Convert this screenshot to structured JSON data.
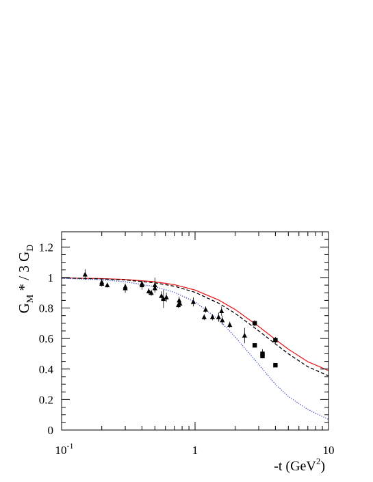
{
  "chart_data": {
    "type": "line",
    "title": "",
    "xscale": "log",
    "xlim": [
      0.1,
      10
    ],
    "ylim": [
      0,
      1.3
    ],
    "x_ticks": [
      {
        "value": 0.1,
        "base": "10",
        "exp": "-1"
      },
      {
        "value": 1,
        "base": "1",
        "exp": ""
      },
      {
        "value": 10,
        "base": "10",
        "exp": ""
      }
    ],
    "y_ticks": [
      {
        "value": 0,
        "label": "0"
      },
      {
        "value": 0.2,
        "label": "0.2"
      },
      {
        "value": 0.4,
        "label": "0.4"
      },
      {
        "value": 0.6,
        "label": "0.6"
      },
      {
        "value": 0.8,
        "label": "0.8"
      },
      {
        "value": 1,
        "label": "1"
      },
      {
        "value": 1.2,
        "label": "1.2"
      }
    ],
    "ylabel": {
      "t1": "G",
      "s1": "M",
      "t2": " * / 3 G",
      "s2": "D"
    },
    "xlabel": {
      "text": "-t (GeV",
      "sup": "2",
      "close": ")"
    },
    "colors": {
      "solid": "#e41a1c",
      "dashed": "#000000",
      "dotted": "#3344cc"
    },
    "series": [
      {
        "style": "solid",
        "x": [
          0.1,
          0.2,
          0.3,
          0.5,
          0.7,
          1.0,
          1.5,
          2.0,
          3.0,
          4.0,
          5.0,
          7.0,
          10.0
        ],
        "y": [
          0.998,
          0.993,
          0.987,
          0.972,
          0.953,
          0.918,
          0.853,
          0.79,
          0.679,
          0.594,
          0.53,
          0.448,
          0.39
        ]
      },
      {
        "style": "dashed",
        "x": [
          0.1,
          0.2,
          0.3,
          0.5,
          0.7,
          1.0,
          1.5,
          2.0,
          3.0,
          4.0,
          5.0,
          7.0,
          10.0
        ],
        "y": [
          0.997,
          0.991,
          0.984,
          0.965,
          0.943,
          0.903,
          0.832,
          0.765,
          0.65,
          0.565,
          0.5,
          0.415,
          0.355
        ]
      },
      {
        "style": "dotted",
        "x": [
          0.1,
          0.2,
          0.3,
          0.5,
          0.7,
          1.0,
          1.5,
          2.0,
          3.0,
          4.0,
          5.0,
          7.0,
          10.0
        ],
        "y": [
          0.995,
          0.985,
          0.972,
          0.94,
          0.903,
          0.84,
          0.725,
          0.61,
          0.43,
          0.3,
          0.22,
          0.135,
          0.07
        ]
      }
    ],
    "triangles": [
      {
        "x": 0.15,
        "y": 1.02,
        "err": 0.035
      },
      {
        "x": 0.2,
        "y": 0.97,
        "err": 0.02
      },
      {
        "x": 0.2,
        "y": 0.96,
        "err": 0.02
      },
      {
        "x": 0.22,
        "y": 0.95,
        "err": 0.015
      },
      {
        "x": 0.3,
        "y": 0.93,
        "err": 0.03
      },
      {
        "x": 0.3,
        "y": 0.94,
        "err": 0.02
      },
      {
        "x": 0.4,
        "y": 0.95,
        "err": 0.03
      },
      {
        "x": 0.4,
        "y": 0.96,
        "err": 0.02
      },
      {
        "x": 0.45,
        "y": 0.91,
        "err": 0.02
      },
      {
        "x": 0.47,
        "y": 0.9,
        "err": 0.02
      },
      {
        "x": 0.5,
        "y": 0.95,
        "err": 0.05
      },
      {
        "x": 0.5,
        "y": 0.93,
        "err": 0.02
      },
      {
        "x": 0.56,
        "y": 0.88,
        "err": 0.03
      },
      {
        "x": 0.58,
        "y": 0.86,
        "err": 0.06
      },
      {
        "x": 0.61,
        "y": 0.87,
        "err": 0.03
      },
      {
        "x": 0.75,
        "y": 0.82,
        "err": 0.02
      },
      {
        "x": 0.76,
        "y": 0.85,
        "err": 0.025
      },
      {
        "x": 0.77,
        "y": 0.83,
        "err": 0.02
      },
      {
        "x": 0.97,
        "y": 0.84,
        "err": 0.03
      },
      {
        "x": 1.17,
        "y": 0.74,
        "err": 0.02
      },
      {
        "x": 1.2,
        "y": 0.79,
        "err": 0.02
      },
      {
        "x": 1.35,
        "y": 0.74,
        "err": 0.02
      },
      {
        "x": 1.5,
        "y": 0.74,
        "err": 0.03
      },
      {
        "x": 1.58,
        "y": 0.78,
        "err": 0.03
      },
      {
        "x": 1.6,
        "y": 0.72,
        "err": 0.03
      },
      {
        "x": 1.82,
        "y": 0.69,
        "err": 0.02
      },
      {
        "x": 2.35,
        "y": 0.62,
        "err": 0.05
      }
    ],
    "squares": [
      {
        "x": 2.8,
        "y": 0.7,
        "err": 0.02
      },
      {
        "x": 2.8,
        "y": 0.555,
        "err": 0.01
      },
      {
        "x": 3.2,
        "y": 0.5,
        "err": 0.03
      },
      {
        "x": 3.2,
        "y": 0.485,
        "err": 0.01
      },
      {
        "x": 4.0,
        "y": 0.59,
        "err": 0.02
      },
      {
        "x": 4.0,
        "y": 0.425,
        "err": 0.01
      }
    ]
  }
}
